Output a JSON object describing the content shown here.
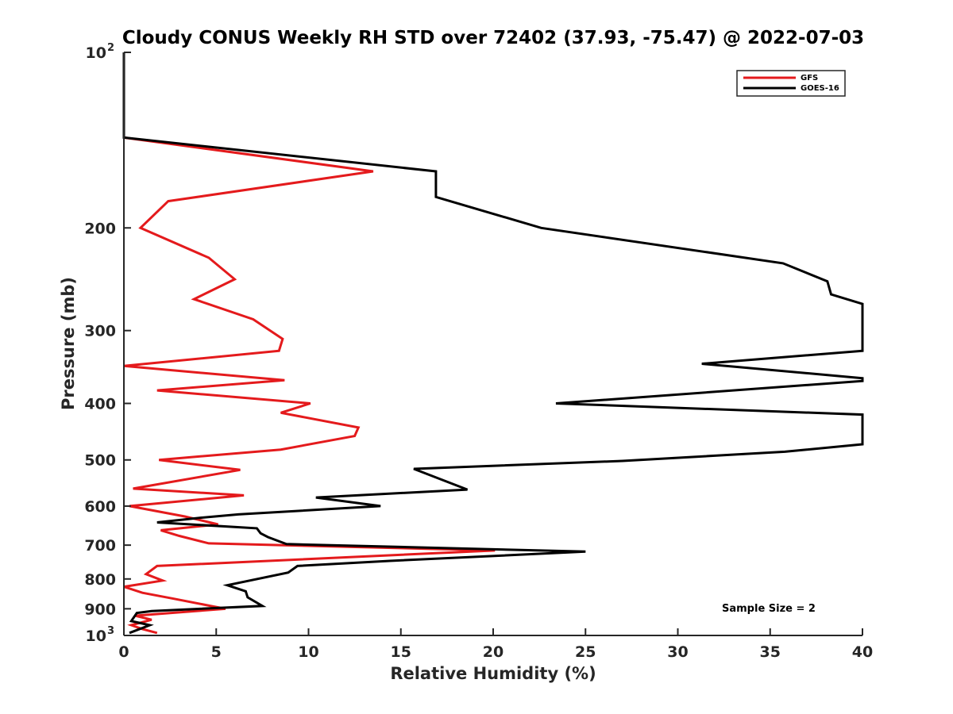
{
  "chart_data": {
    "type": "line",
    "title": "Cloudy CONUS Weekly RH STD over 72402 (37.93, -75.47) @ 2022-07-03",
    "xlabel": "Relative Humidity (%)",
    "ylabel": "Pressure (mb)",
    "xlim": [
      0,
      40
    ],
    "ylim": [
      100,
      1000
    ],
    "y_scale": "log-reversed",
    "x_ticks": [
      "0",
      "5",
      "10",
      "15",
      "20",
      "25",
      "30",
      "35",
      "40"
    ],
    "y_ticks": [
      {
        "value": 100,
        "base": "10",
        "exp": "2"
      },
      {
        "value": 200,
        "label": "200"
      },
      {
        "value": 300,
        "label": "300"
      },
      {
        "value": 400,
        "label": "400"
      },
      {
        "value": 500,
        "label": "500"
      },
      {
        "value": 600,
        "label": "600"
      },
      {
        "value": 700,
        "label": "700"
      },
      {
        "value": 800,
        "label": "800"
      },
      {
        "value": 900,
        "label": "900"
      },
      {
        "value": 1000,
        "base": "10",
        "exp": "3"
      }
    ],
    "legend_position": "top-right",
    "grid": false,
    "annotation": "Sample Size = 2",
    "series": [
      {
        "name": "GFS",
        "color": "#e41a1c",
        "points": [
          [
            0,
            100
          ],
          [
            0,
            140
          ],
          [
            13.5,
            160
          ],
          [
            2.4,
            180
          ],
          [
            0.9,
            200
          ],
          [
            4.6,
            225
          ],
          [
            6.0,
            245
          ],
          [
            3.8,
            265
          ],
          [
            7.0,
            287
          ],
          [
            8.6,
            310
          ],
          [
            8.4,
            325
          ],
          [
            0,
            345
          ],
          [
            8.7,
            365
          ],
          [
            1.8,
            380
          ],
          [
            10.1,
            400
          ],
          [
            8.5,
            415
          ],
          [
            12.7,
            440
          ],
          [
            12.5,
            455
          ],
          [
            8.5,
            480
          ],
          [
            1.9,
            500
          ],
          [
            6.3,
            520
          ],
          [
            0.5,
            560
          ],
          [
            6.5,
            575
          ],
          [
            0.3,
            600
          ],
          [
            3.3,
            625
          ],
          [
            5.1,
            645
          ],
          [
            2.0,
            660
          ],
          [
            3.0,
            675
          ],
          [
            4.6,
            695
          ],
          [
            20.1,
            715
          ],
          [
            1.8,
            760
          ],
          [
            1.2,
            785
          ],
          [
            2.1,
            805
          ],
          [
            0,
            825
          ],
          [
            1.0,
            845
          ],
          [
            2.7,
            865
          ],
          [
            5.5,
            900
          ],
          [
            0.6,
            925
          ],
          [
            1.5,
            940
          ],
          [
            0.4,
            960
          ],
          [
            1.0,
            975
          ],
          [
            1.8,
            990
          ]
        ]
      },
      {
        "name": "GOES-16",
        "color": "#000000",
        "points": [
          [
            0,
            100
          ],
          [
            0,
            140
          ],
          [
            16.9,
            160
          ],
          [
            16.9,
            177
          ],
          [
            22.6,
            200
          ],
          [
            35.7,
            230
          ],
          [
            38.1,
            247
          ],
          [
            38.3,
            260
          ],
          [
            40,
            270
          ],
          [
            40,
            325
          ],
          [
            31.3,
            342
          ],
          [
            40,
            362
          ],
          [
            40,
            366
          ],
          [
            23.4,
            400
          ],
          [
            40,
            418
          ],
          [
            40,
            470
          ],
          [
            35.8,
            484
          ],
          [
            27.0,
            502
          ],
          [
            15.7,
            518
          ],
          [
            18.6,
            562
          ],
          [
            10.4,
            580
          ],
          [
            13.9,
            600
          ],
          [
            6.2,
            620
          ],
          [
            4.2,
            628
          ],
          [
            1.8,
            640
          ],
          [
            7.2,
            655
          ],
          [
            7.4,
            668
          ],
          [
            7.8,
            678
          ],
          [
            8.8,
            697
          ],
          [
            25.0,
            718
          ],
          [
            14.4,
            745
          ],
          [
            9.4,
            760
          ],
          [
            8.9,
            780
          ],
          [
            5.6,
            820
          ],
          [
            6.6,
            840
          ],
          [
            6.7,
            860
          ],
          [
            7.5,
            890
          ],
          [
            1.5,
            908
          ],
          [
            0.7,
            915
          ],
          [
            0.4,
            945
          ],
          [
            1.4,
            960
          ],
          [
            0.3,
            990
          ]
        ]
      }
    ]
  }
}
